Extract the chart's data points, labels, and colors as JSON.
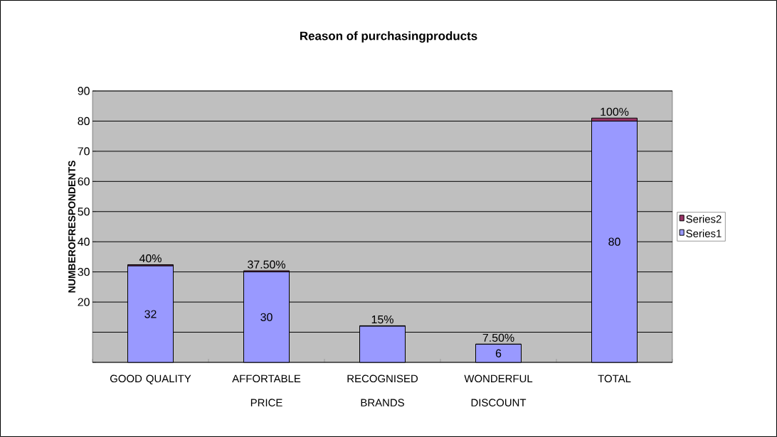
{
  "chart_data": {
    "type": "bar",
    "title": "Reason of purchasingproducts",
    "ylabel": "NUMBEROFRESPONDENTS",
    "categories": [
      "GOOD QUALITY",
      "AFFORTABLE PRICE",
      "RECOGNISED BRANDS",
      "WONDERFUL DISCOUNT",
      "TOTAL"
    ],
    "stacked": true,
    "series": [
      {
        "name": "Series1",
        "color": "#9999ff",
        "values": [
          32,
          30,
          12,
          6,
          80
        ],
        "value_labels": [
          "32",
          "30",
          null,
          "6",
          "80"
        ]
      },
      {
        "name": "Series2",
        "color": "#993366",
        "values": [
          0.4,
          0.375,
          0.15,
          0.075,
          1
        ],
        "value_labels": [
          "40%",
          "37.50%",
          "15%",
          "7.50%",
          "100%"
        ]
      }
    ],
    "ylim": [
      0,
      90
    ],
    "yticks": [
      {
        "value": 0,
        "label": null
      },
      {
        "value": 10,
        "label": null
      },
      20,
      30,
      40,
      50,
      60,
      70,
      80,
      90
    ],
    "grid": "y",
    "legend": "right"
  }
}
